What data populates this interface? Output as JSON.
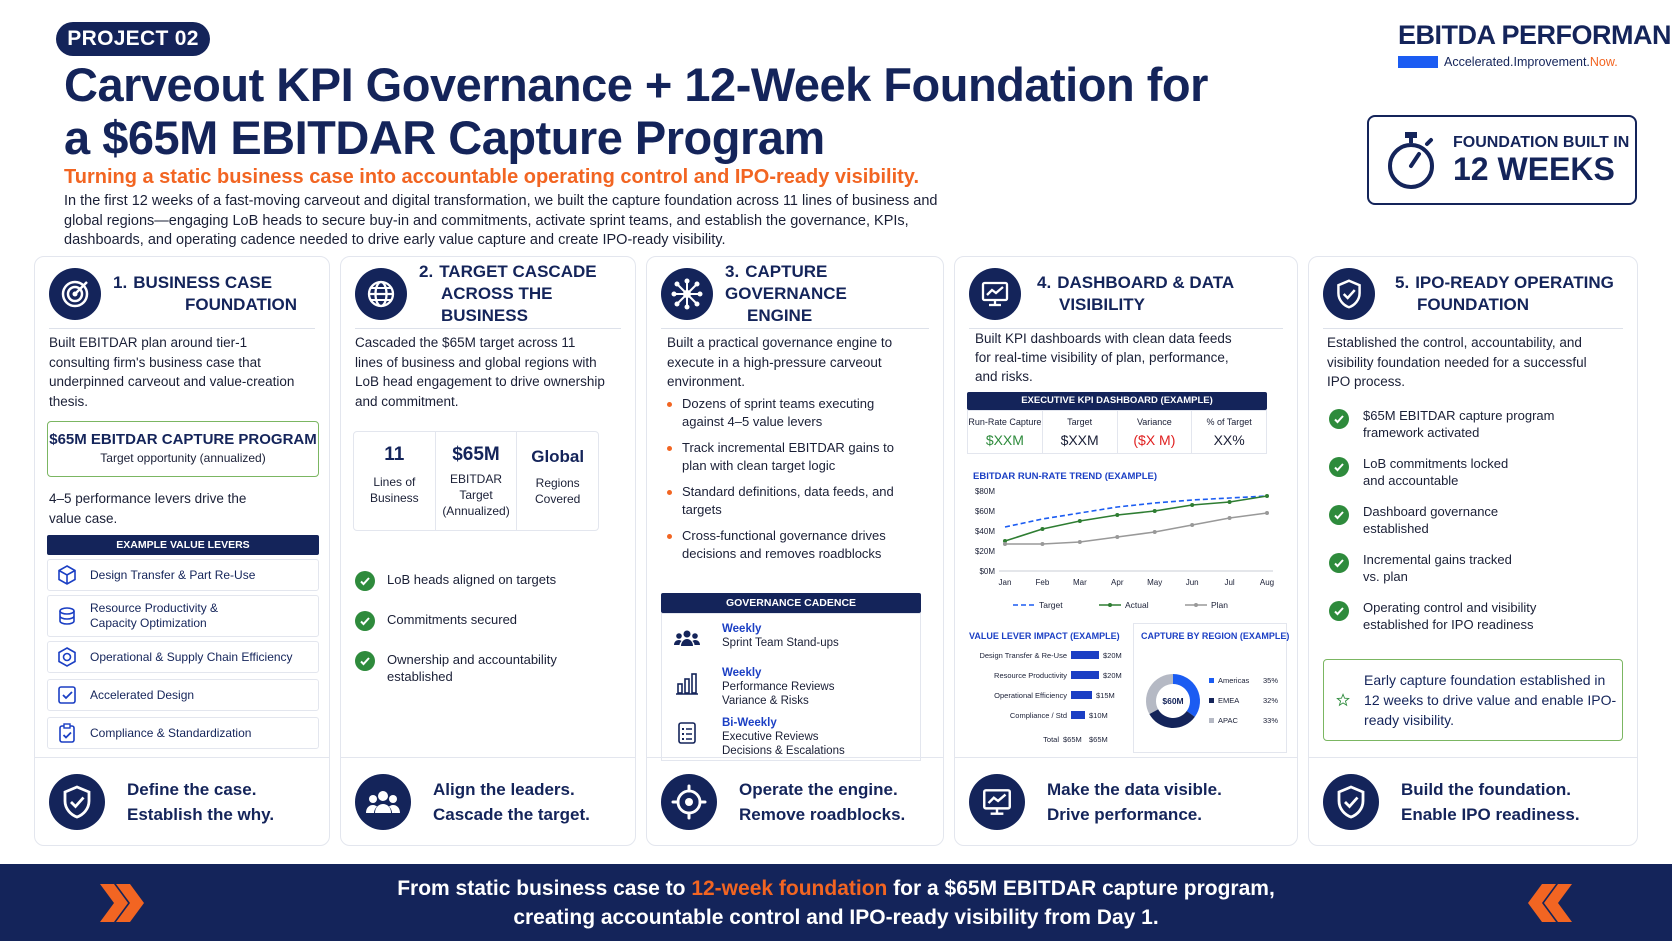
{
  "header": {
    "badge": "PROJECT 02",
    "title_line1": "Carveout KPI Governance + 12-Week Foundation for",
    "title_line2": "a $65M EBITDAR Capture Program",
    "subtitle": "Turning a static business case into accountable operating control and IPO-ready visibility.",
    "intro": "In the first 12 weeks of a fast-moving carveout and digital transformation, we built the capture foundation across 11 lines of business and global regions—engaging LoB heads to secure buy-in and commitments, activate sprint teams, and establish the governance, KPIs, dashboards, and operating cadence needed to drive early value capture and create IPO-ready visibility."
  },
  "brand": {
    "name": "EBITDA PERFORMANCE",
    "tag_main": "Accelerated.Improvement.",
    "tag_accent": "Now.",
    "accent_color": "#f26522",
    "bar_color": "#1b5cf2"
  },
  "foundation": {
    "line1": "FOUNDATION BUILT IN",
    "line2": "12 WEEKS",
    "icon": "stopwatch-icon"
  },
  "cards": [
    {
      "num": "1.",
      "title_l1": "BUSINESS CASE",
      "title_l2": "FOUNDATION",
      "icon": "target-icon",
      "body": "Built EBITDAR plan around tier-1 consulting firm's business case that underpinned carveout and value-creation thesis.",
      "capture_l1": "$65M EBITDAR CAPTURE PROGRAM",
      "capture_l2": "Target opportunity (annualized)",
      "levers_note": "4–5 performance levers drive the value case.",
      "levers_head": "EXAMPLE VALUE LEVERS",
      "levers": [
        {
          "label": "Design Transfer & Part Re-Use",
          "icon": "cube-icon"
        },
        {
          "label": "Resource Productivity &\nCapacity Optimization",
          "icon": "stack-coins-icon"
        },
        {
          "label": "Operational & Supply Chain Efficiency",
          "icon": "hexagon-gear-icon"
        },
        {
          "label": "Accelerated Design",
          "icon": "check-square-icon"
        },
        {
          "label": "Compliance & Standardization",
          "icon": "clipboard-check-icon"
        }
      ],
      "foot_l1": "Define the case.",
      "foot_l2": "Establish the why.",
      "foot_icon": "shield-check-icon"
    },
    {
      "num": "2.",
      "title_l1": "TARGET CASCADE",
      "title_l2": "ACROSS THE BUSINESS",
      "icon": "globe-icon",
      "body": "Cascaded the $65M target across 11 lines of business and global regions with LoB head engagement to drive ownership and commitment.",
      "stats": [
        {
          "value": "11",
          "sub": "Lines of\nBusiness"
        },
        {
          "value": "$65M",
          "sub": "EBITDAR\nTarget\n(Annualized)"
        },
        {
          "value": "Global",
          "sub": "Regions\nCovered"
        }
      ],
      "checks": [
        "LoB heads aligned on targets",
        "Commitments secured",
        "Ownership and accountability\nestablished"
      ],
      "foot_l1": "Align the leaders.",
      "foot_l2": "Cascade the target.",
      "foot_icon": "people-icon"
    },
    {
      "num": "3.",
      "title_l1": "CAPTURE GOVERNANCE",
      "title_l2": "ENGINE",
      "icon": "network-icon",
      "body": "Built a practical governance engine to execute in a high-pressure carveout environment.",
      "bullets": [
        "Dozens of sprint teams executing against 4–5 value levers",
        "Track incremental EBITDAR gains to plan with clean target logic",
        "Standard definitions, data feeds, and targets",
        "Cross-functional governance drives decisions and removes roadblocks"
      ],
      "cadence_head": "GOVERNANCE CADENCE",
      "cadence": [
        {
          "freq": "Weekly",
          "l1": "Sprint Team Stand-ups",
          "l2": "",
          "icon": "team-icon"
        },
        {
          "freq": "Weekly",
          "l1": "Performance Reviews",
          "l2": "Variance & Risks",
          "icon": "bar-chart-icon"
        },
        {
          "freq": "Bi-Weekly",
          "l1": "Executive Reviews",
          "l2": "Decisions & Escalations",
          "icon": "checklist-icon"
        }
      ],
      "foot_l1": "Operate the engine.",
      "foot_l2": "Remove roadblocks.",
      "foot_icon": "gear-target-icon"
    },
    {
      "num": "4.",
      "title_l1": "DASHBOARD & DATA",
      "title_l2": "VISIBILITY",
      "icon": "monitor-chart-icon",
      "body": "Built KPI dashboards with clean data feeds for real-time visibility of plan, performance, and risks.",
      "dash_head": "EXECUTIVE KPI DASHBOARD (EXAMPLE)",
      "kpis": [
        {
          "label": "Run-Rate Capture",
          "value": "$XXM",
          "color": "#2e8b3c"
        },
        {
          "label": "Target",
          "value": "$XXM",
          "color": "#1a1f36"
        },
        {
          "label": "Variance",
          "value": "($X M)",
          "color": "#e02020"
        },
        {
          "label": "% of Target",
          "value": "XX%",
          "color": "#1a1f36"
        }
      ],
      "foot_l1": "Make the data visible.",
      "foot_l2": "Drive performance.",
      "foot_icon": "monitor-chart-icon"
    },
    {
      "num": "5.",
      "title_l1": "IPO-READY OPERATING",
      "title_l2": "FOUNDATION",
      "icon": "shield-check-icon",
      "body": "Established the control, accountability, and visibility foundation needed for a successful IPO process.",
      "checks": [
        "$65M EBITDAR capture program\nframework activated",
        "LoB commitments locked\nand accountable",
        "Dashboard governance\nestablished",
        "Incremental gains tracked\nvs. plan",
        "Operating control and visibility\nestablished for IPO readiness"
      ],
      "star_text": "Early capture foundation established in 12 weeks to drive value and enable IPO-ready visibility.",
      "foot_l1": "Build the foundation.",
      "foot_l2": "Enable IPO readiness.",
      "foot_icon": "shield-check-icon"
    }
  ],
  "chart_data": [
    {
      "type": "line",
      "title": "EBITDAR RUN-RATE TREND (EXAMPLE)",
      "x": [
        "Jan",
        "Feb",
        "Mar",
        "Apr",
        "May",
        "Jun",
        "Jul",
        "Aug"
      ],
      "ylim": [
        0,
        80
      ],
      "yticks": [
        "$0M",
        "$20M",
        "$40M",
        "$60M",
        "$80M"
      ],
      "series": [
        {
          "name": "Target",
          "values": [
            44,
            52,
            58,
            64,
            68,
            71,
            73,
            75
          ],
          "color": "#1b5cf2",
          "dash": true
        },
        {
          "name": "Actual",
          "values": [
            30,
            42,
            50,
            56,
            60,
            66,
            69,
            75
          ],
          "color": "#2e7d32"
        },
        {
          "name": "Plan",
          "values": [
            27,
            27,
            29,
            34,
            39,
            46,
            53,
            58
          ],
          "color": "#999999"
        }
      ]
    },
    {
      "type": "bar",
      "title": "VALUE LEVER IMPACT (EXAMPLE)",
      "categories": [
        "Design Transfer & Re-Use",
        "Resource Productivity",
        "Operational Efficiency",
        "Compliance / Std"
      ],
      "values": [
        20,
        20,
        15,
        10
      ],
      "value_labels": [
        "$20M",
        "$20M",
        "$15M",
        "$10M"
      ],
      "total_label": "Total",
      "total_values": [
        "$65M",
        "$65M"
      ],
      "color": "#1b3fc4"
    },
    {
      "type": "pie",
      "title": "CAPTURE BY REGION (EXAMPLE)",
      "center_label": "$60M",
      "labels": [
        "Americas",
        "EMEA",
        "APAC"
      ],
      "values": [
        35,
        32,
        33
      ],
      "value_labels": [
        "35%",
        "32%",
        "33%"
      ],
      "colors": [
        "#1b5cf2",
        "#14245a",
        "#b5b9c4"
      ]
    }
  ],
  "banner": {
    "pre": "From static business case to ",
    "highlight": "12-week foundation",
    "post": " for a $65M EBITDAR capture program,",
    "line2": "creating accountable control and IPO-ready visibility from Day 1."
  }
}
